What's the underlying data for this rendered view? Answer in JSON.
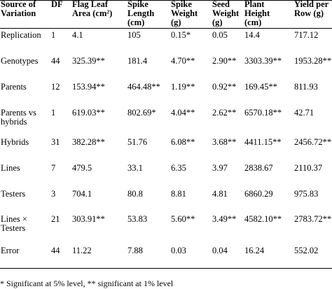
{
  "table": {
    "headers": [
      [
        "Source of",
        "Variation"
      ],
      [
        "DF",
        ""
      ],
      [
        "Flag Leaf",
        "Area (cm²)"
      ],
      [
        "Spike",
        "Length",
        "(cm)"
      ],
      [
        "Spike",
        "Weight",
        "(g)"
      ],
      [
        "Seed",
        "Weight",
        "(g)"
      ],
      [
        "Plant",
        "Height",
        "(cm)"
      ],
      [
        "Yield per",
        "Row (g)"
      ]
    ],
    "rows": [
      {
        "source": [
          "Replication"
        ],
        "df": "1",
        "flag_leaf": "4.1",
        "spike_length": "105",
        "spike_weight": "0.15*",
        "seed_weight": "0.05",
        "plant_height": "14.4",
        "yield": "717.12"
      },
      {
        "source": [
          "Genotypes"
        ],
        "df": "44",
        "flag_leaf": "325.39**",
        "spike_length": "181.4",
        "spike_weight": "4.70**",
        "seed_weight": "2.90**",
        "plant_height": "3303.39**",
        "yield": "1953.28**"
      },
      {
        "source": [
          "Parents"
        ],
        "df": "12",
        "flag_leaf": "153.94**",
        "spike_length": "464.48**",
        "spike_weight": "1.19**",
        "seed_weight": "0.92**",
        "plant_height": "169.45**",
        "yield": "811.93"
      },
      {
        "source": [
          "Parents vs",
          "hybrids"
        ],
        "df": "1",
        "flag_leaf": "619.03**",
        "spike_length": "802.69*",
        "spike_weight": "4.04**",
        "seed_weight": "2.62**",
        "plant_height": "6570.18**",
        "yield": "42.71"
      },
      {
        "source": [
          "Hybrids"
        ],
        "df": "31",
        "flag_leaf": "382.28**",
        "spike_length": "51.76",
        "spike_weight": "6.08**",
        "seed_weight": "3.68**",
        "plant_height": "4411.15**",
        "yield": "2456.72**"
      },
      {
        "source": [
          "Lines"
        ],
        "df": "7",
        "flag_leaf": "479.5",
        "spike_length": "33.1",
        "spike_weight": "6.35",
        "seed_weight": "3.97",
        "plant_height": "2838.67",
        "yield": "2110.37"
      },
      {
        "source": [
          "Testers"
        ],
        "df": "3",
        "flag_leaf": "704.1",
        "spike_length": "80.8",
        "spike_weight": "8.81",
        "seed_weight": "4.81",
        "plant_height": "6860.29",
        "yield": "975.83"
      },
      {
        "source": [
          "Lines ×",
          "Testers"
        ],
        "df": "21",
        "flag_leaf": "303.91**",
        "spike_length": "53.83",
        "spike_weight": "5.60**",
        "seed_weight": "3.49**",
        "plant_height": "4582.10**",
        "yield": "2783.72**"
      },
      {
        "source": [
          "Error"
        ],
        "df": "44",
        "flag_leaf": "11.22",
        "spike_length": "7.88",
        "spike_weight": "0.03",
        "seed_weight": "0.04",
        "plant_height": "16.24",
        "yield": "552.02"
      }
    ]
  },
  "footnote": "* Significant at 5% level, ** significant at 1% level"
}
